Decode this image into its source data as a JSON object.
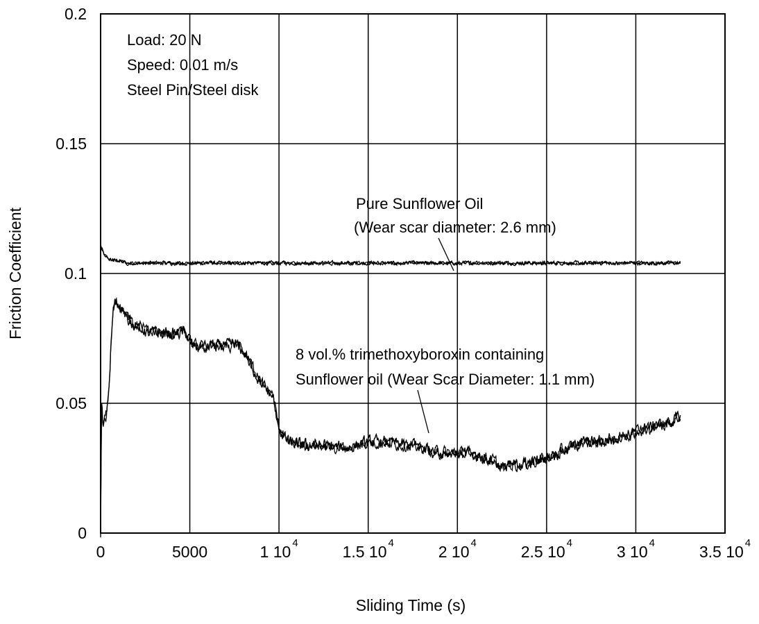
{
  "chart_data": {
    "type": "line",
    "xlabel": "Sliding Time (s)",
    "ylabel": "Friction Coefficient",
    "xlim": [
      0,
      35000
    ],
    "ylim": [
      0,
      0.2
    ],
    "x_ticks": [
      {
        "value": 0,
        "base": "0",
        "exp": ""
      },
      {
        "value": 5000,
        "base": "5000",
        "exp": ""
      },
      {
        "value": 10000,
        "base": "1 10",
        "exp": "4"
      },
      {
        "value": 15000,
        "base": "1.5 10",
        "exp": "4"
      },
      {
        "value": 20000,
        "base": "2 10",
        "exp": "4"
      },
      {
        "value": 25000,
        "base": "2.5 10",
        "exp": "4"
      },
      {
        "value": 30000,
        "base": "3 10",
        "exp": "4"
      },
      {
        "value": 35000,
        "base": "3.5 10",
        "exp": "4"
      }
    ],
    "y_ticks": [
      {
        "value": 0,
        "label": "0"
      },
      {
        "value": 0.05,
        "label": "0.05"
      },
      {
        "value": 0.1,
        "label": "0.1"
      },
      {
        "value": 0.15,
        "label": "0.15"
      },
      {
        "value": 0.2,
        "label": "0.2"
      }
    ],
    "grid": true,
    "conditions": [
      "Load: 20 N",
      "Speed: 0.01 m/s",
      "Steel Pin/Steel disk"
    ],
    "annotations": {
      "pure": [
        "Pure Sunflower Oil",
        "(Wear scar diameter: 2.6 mm)"
      ],
      "additive": [
        "8 vol.% trimethoxyboroxin containing",
        "Sunflower oil (Wear Scar Diameter: 1.1 mm)"
      ]
    },
    "series": [
      {
        "x": [
          0,
          100,
          200,
          400,
          600,
          800,
          1000,
          1500,
          2000,
          3000,
          4000,
          5000,
          6000,
          8000,
          10000,
          12000,
          15000,
          18000,
          20000,
          22000,
          25000,
          28000,
          30000,
          32500
        ],
        "y": [
          0.111,
          0.109,
          0.107,
          0.106,
          0.105,
          0.105,
          0.105,
          0.104,
          0.104,
          0.104,
          0.104,
          0.104,
          0.104,
          0.104,
          0.104,
          0.104,
          0.104,
          0.104,
          0.104,
          0.104,
          0.104,
          0.104,
          0.104,
          0.104
        ],
        "noise": 0.0012
      },
      {
        "x": [
          0,
          50,
          100,
          150,
          200,
          300,
          400,
          500,
          600,
          700,
          800,
          1000,
          1200,
          1500,
          2000,
          2500,
          3000,
          4000,
          4800,
          5200,
          6000,
          7000,
          7600,
          8200,
          8800,
          9300,
          9700,
          10000,
          10500,
          11000,
          12000,
          13000,
          14000,
          15000,
          16000,
          17000,
          18000,
          19000,
          20000,
          21000,
          22000,
          22500,
          23000,
          24000,
          25000,
          26000,
          27000,
          28000,
          29000,
          30000,
          31000,
          32000,
          32500
        ],
        "y": [
          0.0,
          0.05,
          0.045,
          0.04,
          0.043,
          0.045,
          0.05,
          0.06,
          0.075,
          0.085,
          0.088,
          0.088,
          0.087,
          0.083,
          0.08,
          0.078,
          0.077,
          0.077,
          0.077,
          0.072,
          0.072,
          0.072,
          0.073,
          0.068,
          0.06,
          0.055,
          0.052,
          0.04,
          0.035,
          0.034,
          0.034,
          0.033,
          0.033,
          0.035,
          0.035,
          0.034,
          0.033,
          0.031,
          0.031,
          0.03,
          0.028,
          0.025,
          0.026,
          0.027,
          0.029,
          0.032,
          0.035,
          0.035,
          0.037,
          0.039,
          0.041,
          0.043,
          0.045
        ],
        "noise": 0.004
      }
    ]
  }
}
